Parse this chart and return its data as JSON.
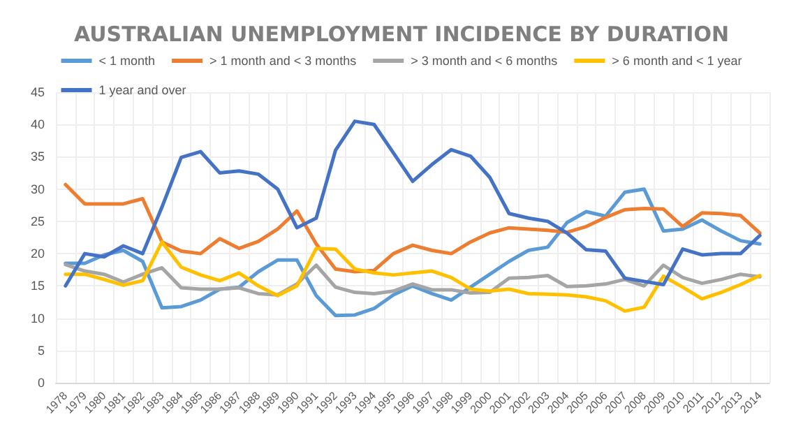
{
  "chart_data": {
    "type": "line",
    "title": "AUSTRALIAN UNEMPLOYMENT INCIDENCE BY DURATION",
    "categories": [
      "1978",
      "1979",
      "1980",
      "1981",
      "1982",
      "1983",
      "1984",
      "1985",
      "1986",
      "1987",
      "1988",
      "1989",
      "1990",
      "1991",
      "1992",
      "1993",
      "1994",
      "1995",
      "1996",
      "1997",
      "1998",
      "1999",
      "2000",
      "2001",
      "2002",
      "2003",
      "2004",
      "2005",
      "2006",
      "2007",
      "2008",
      "2009",
      "2010",
      "2011",
      "2012",
      "2013",
      "2014"
    ],
    "series": [
      {
        "name": "< 1 month",
        "color": "#5b9bd5",
        "values": [
          18.5,
          18.5,
          19.8,
          20.5,
          18.8,
          11.6,
          11.8,
          12.8,
          14.5,
          14.8,
          17.2,
          19,
          19,
          13.5,
          10.4,
          10.5,
          11.5,
          13.6,
          15,
          13.8,
          12.8,
          14.8,
          16.8,
          18.8,
          20.5,
          21,
          24.8,
          26.5,
          25.8,
          29.5,
          30,
          23.5,
          23.8,
          25.2,
          23.5,
          22,
          21.5
        ]
      },
      {
        "name": "> 1 month and < 3 months",
        "color": "#ed7d31",
        "values": [
          30.7,
          27.7,
          27.7,
          27.7,
          28.5,
          21.8,
          20.4,
          20,
          22.3,
          20.8,
          21.9,
          23.8,
          26.6,
          21.5,
          17.6,
          17.2,
          17.4,
          20,
          21.3,
          20.5,
          20,
          21.8,
          23.2,
          24,
          23.8,
          23.6,
          23.3,
          24.2,
          25.6,
          26.8,
          27,
          26.9,
          24.2,
          26.3,
          26.2,
          25.9,
          23.2
        ]
      },
      {
        "name": "> 3 month and < 6 months",
        "color": "#a5a5a5",
        "values": [
          18.3,
          17.3,
          16.8,
          15.6,
          16.8,
          17.8,
          14.7,
          14.5,
          14.5,
          14.7,
          13.8,
          13.6,
          15.3,
          18.2,
          14.8,
          14,
          13.8,
          14.2,
          15.3,
          14.4,
          14.4,
          13.9,
          14,
          16.2,
          16.3,
          16.6,
          14.9,
          15,
          15.3,
          16,
          15,
          18.2,
          16.3,
          15.4,
          16,
          16.8,
          16.4
        ]
      },
      {
        "name": "> 6 month and < 1 year",
        "color": "#ffc000",
        "values": [
          16.8,
          16.8,
          16,
          15.1,
          15.8,
          21.8,
          17.9,
          16.7,
          15.8,
          17,
          15,
          13.5,
          15,
          20.8,
          20.7,
          17.6,
          17,
          16.7,
          17,
          17.3,
          16.3,
          14.5,
          14.2,
          14.5,
          13.8,
          13.7,
          13.6,
          13.3,
          12.7,
          11.1,
          11.7,
          16.5,
          14.8,
          13,
          14,
          15.2,
          16.6
        ]
      },
      {
        "name": "1 year and over",
        "color": "#4472c4",
        "values": [
          15,
          20,
          19.5,
          21.2,
          20,
          27.2,
          34.9,
          35.8,
          32.5,
          32.8,
          32.3,
          30,
          24,
          25.5,
          36,
          40.5,
          40,
          35.6,
          31.2,
          33.8,
          36.1,
          35.1,
          31.8,
          26.2,
          25.5,
          25,
          23.2,
          20.6,
          20.4,
          16.2,
          15.7,
          15.2,
          20.7,
          19.8,
          20,
          20,
          22.8
        ]
      }
    ],
    "ylim": [
      0,
      45
    ],
    "yticks": [
      0,
      5,
      10,
      15,
      20,
      25,
      30,
      35,
      40,
      45
    ],
    "grid": true,
    "legend": "top",
    "marker": "none",
    "line_style": "solid"
  }
}
